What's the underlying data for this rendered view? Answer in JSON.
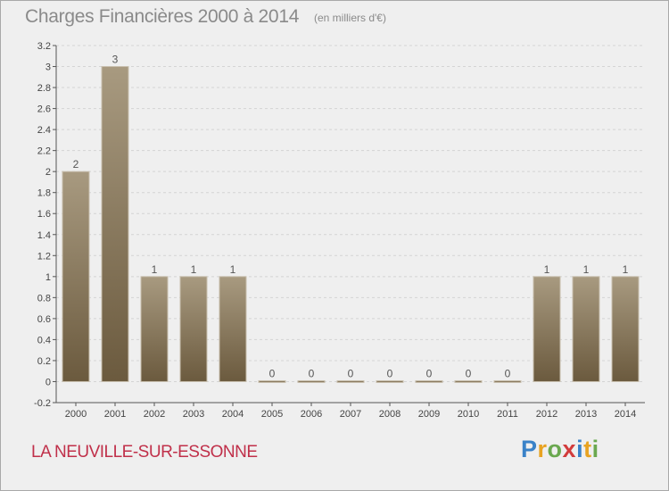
{
  "title": "Charges Financières 2000 à 2014",
  "units": "(en milliers d'€)",
  "commune": "LA NEUVILLE-SUR-ESSONNE",
  "logo": {
    "letters": [
      "P",
      "r",
      "o",
      "x",
      "i",
      "t",
      "i"
    ],
    "colors": [
      "#3a82c8",
      "#e8a322",
      "#6aa84f",
      "#d23c3c",
      "#3a82c8",
      "#e8a322",
      "#6aa84f"
    ]
  },
  "colors": {
    "bar_top": "#a89a80",
    "bar_bottom": "#6b5a3e",
    "background": "#efefef"
  },
  "chart_data": {
    "type": "bar",
    "categories": [
      "2000",
      "2001",
      "2002",
      "2003",
      "2004",
      "2005",
      "2006",
      "2007",
      "2008",
      "2009",
      "2010",
      "2011",
      "2012",
      "2013",
      "2014"
    ],
    "values": [
      2,
      3,
      1,
      1,
      1,
      0,
      0,
      0,
      0,
      0,
      0,
      0,
      1,
      1,
      1
    ],
    "ylim": [
      -0.2,
      3.2
    ],
    "yticks": [
      "-0.2",
      "0",
      "0.2",
      "0.4",
      "0.6",
      "0.8",
      "1",
      "1.2",
      "1.4",
      "1.6",
      "1.8",
      "2",
      "2.2",
      "2.4",
      "2.6",
      "2.8",
      "3",
      "3.2"
    ],
    "ytick_values": [
      -0.2,
      0,
      0.2,
      0.4,
      0.6,
      0.8,
      1,
      1.2,
      1.4,
      1.6,
      1.8,
      2,
      2.2,
      2.4,
      2.6,
      2.8,
      3,
      3.2
    ],
    "grid": true
  }
}
